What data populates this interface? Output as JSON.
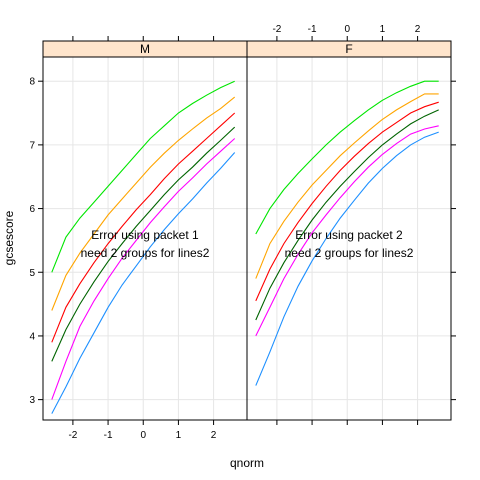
{
  "chart_data": {
    "type": "line",
    "xlabel": "qnorm",
    "ylabel": "gcsescore",
    "xlim": [
      -2.85,
      2.95
    ],
    "ylim": [
      2.68,
      8.38
    ],
    "x_ticks": [
      -2,
      -1,
      0,
      1,
      2
    ],
    "y_ticks": [
      3,
      4,
      5,
      6,
      7,
      8
    ],
    "x_tick_labels": [
      "-2",
      "-1",
      "0",
      "1",
      "2"
    ],
    "y_tick_labels": [
      "3",
      "4",
      "5",
      "6",
      "7",
      "8"
    ],
    "grid": true,
    "panels": [
      {
        "strip": "M",
        "message": [
          "Error using packet 1",
          "need 2 groups for lines2"
        ],
        "series": [
          {
            "color": "#00e600",
            "x": [
              -2.6,
              -2.2,
              -1.8,
              -1.4,
              -1.0,
              -0.6,
              -0.2,
              0.2,
              0.6,
              1.0,
              1.4,
              1.8,
              2.2,
              2.6
            ],
            "y": [
              5.0,
              5.55,
              5.85,
              6.1,
              6.35,
              6.6,
              6.85,
              7.1,
              7.3,
              7.5,
              7.65,
              7.78,
              7.9,
              8.0
            ]
          },
          {
            "color": "#ffa500",
            "x": [
              -2.6,
              -2.2,
              -1.8,
              -1.4,
              -1.0,
              -0.6,
              -0.2,
              0.2,
              0.6,
              1.0,
              1.4,
              1.8,
              2.2,
              2.6
            ],
            "y": [
              4.4,
              4.95,
              5.3,
              5.6,
              5.9,
              6.15,
              6.4,
              6.65,
              6.87,
              7.07,
              7.25,
              7.42,
              7.57,
              7.75
            ]
          },
          {
            "color": "#ff0000",
            "x": [
              -2.6,
              -2.2,
              -1.8,
              -1.4,
              -1.0,
              -0.6,
              -0.2,
              0.2,
              0.6,
              1.0,
              1.4,
              1.8,
              2.2,
              2.6
            ],
            "y": [
              3.9,
              4.45,
              4.82,
              5.15,
              5.45,
              5.72,
              5.98,
              6.22,
              6.47,
              6.7,
              6.9,
              7.1,
              7.3,
              7.5
            ]
          },
          {
            "color": "#006400",
            "x": [
              -2.6,
              -2.2,
              -1.8,
              -1.4,
              -1.0,
              -0.6,
              -0.2,
              0.2,
              0.6,
              1.0,
              1.4,
              1.8,
              2.2,
              2.6
            ],
            "y": [
              3.6,
              4.1,
              4.5,
              4.85,
              5.17,
              5.45,
              5.72,
              5.97,
              6.22,
              6.45,
              6.65,
              6.87,
              7.07,
              7.28
            ]
          },
          {
            "color": "#ff00ff",
            "x": [
              -2.6,
              -2.2,
              -1.8,
              -1.4,
              -1.0,
              -0.6,
              -0.2,
              0.2,
              0.6,
              1.0,
              1.4,
              1.8,
              2.2,
              2.6
            ],
            "y": [
              3.0,
              3.6,
              4.15,
              4.55,
              4.9,
              5.22,
              5.5,
              5.78,
              6.03,
              6.27,
              6.48,
              6.7,
              6.9,
              7.1
            ]
          },
          {
            "color": "#1e90ff",
            "x": [
              -2.6,
              -2.2,
              -1.8,
              -1.4,
              -1.0,
              -0.6,
              -0.2,
              0.2,
              0.6,
              1.0,
              1.4,
              1.8,
              2.2,
              2.6
            ],
            "y": [
              2.78,
              3.2,
              3.65,
              4.05,
              4.45,
              4.8,
              5.1,
              5.4,
              5.67,
              5.92,
              6.15,
              6.4,
              6.63,
              6.88
            ]
          }
        ]
      },
      {
        "strip": "F",
        "message": [
          "Error using packet 2",
          "need 2 groups for lines2"
        ],
        "series": [
          {
            "color": "#00e600",
            "x": [
              -2.6,
              -2.2,
              -1.8,
              -1.4,
              -1.0,
              -0.6,
              -0.2,
              0.2,
              0.6,
              1.0,
              1.4,
              1.8,
              2.2,
              2.6
            ],
            "y": [
              5.6,
              6.0,
              6.3,
              6.55,
              6.78,
              7.0,
              7.2,
              7.38,
              7.55,
              7.7,
              7.82,
              7.92,
              8.0,
              8.0
            ]
          },
          {
            "color": "#ffa500",
            "x": [
              -2.6,
              -2.2,
              -1.8,
              -1.4,
              -1.0,
              -0.6,
              -0.2,
              0.2,
              0.6,
              1.0,
              1.4,
              1.8,
              2.2,
              2.6
            ],
            "y": [
              4.9,
              5.45,
              5.8,
              6.1,
              6.37,
              6.6,
              6.83,
              7.03,
              7.22,
              7.4,
              7.55,
              7.68,
              7.8,
              7.8
            ]
          },
          {
            "color": "#ff0000",
            "x": [
              -2.6,
              -2.2,
              -1.8,
              -1.4,
              -1.0,
              -0.6,
              -0.2,
              0.2,
              0.6,
              1.0,
              1.4,
              1.8,
              2.2,
              2.6
            ],
            "y": [
              4.55,
              5.05,
              5.45,
              5.78,
              6.08,
              6.35,
              6.6,
              6.82,
              7.02,
              7.2,
              7.35,
              7.5,
              7.6,
              7.67
            ]
          },
          {
            "color": "#006400",
            "x": [
              -2.6,
              -2.2,
              -1.8,
              -1.4,
              -1.0,
              -0.6,
              -0.2,
              0.2,
              0.6,
              1.0,
              1.4,
              1.8,
              2.2,
              2.6
            ],
            "y": [
              4.25,
              4.75,
              5.15,
              5.5,
              5.82,
              6.1,
              6.35,
              6.58,
              6.8,
              7.0,
              7.17,
              7.33,
              7.45,
              7.55
            ]
          },
          {
            "color": "#ff00ff",
            "x": [
              -2.6,
              -2.2,
              -1.8,
              -1.4,
              -1.0,
              -0.6,
              -0.2,
              0.2,
              0.6,
              1.0,
              1.4,
              1.8,
              2.2,
              2.6
            ],
            "y": [
              4.0,
              4.45,
              4.9,
              5.28,
              5.62,
              5.9,
              6.17,
              6.42,
              6.65,
              6.85,
              7.02,
              7.17,
              7.25,
              7.3
            ]
          },
          {
            "color": "#1e90ff",
            "x": [
              -2.6,
              -2.2,
              -1.8,
              -1.4,
              -1.0,
              -0.6,
              -0.2,
              0.2,
              0.6,
              1.0,
              1.4,
              1.8,
              2.2,
              2.6
            ],
            "y": [
              3.22,
              3.75,
              4.3,
              4.78,
              5.18,
              5.53,
              5.85,
              6.13,
              6.4,
              6.63,
              6.83,
              7.0,
              7.12,
              7.2
            ]
          }
        ]
      }
    ]
  }
}
